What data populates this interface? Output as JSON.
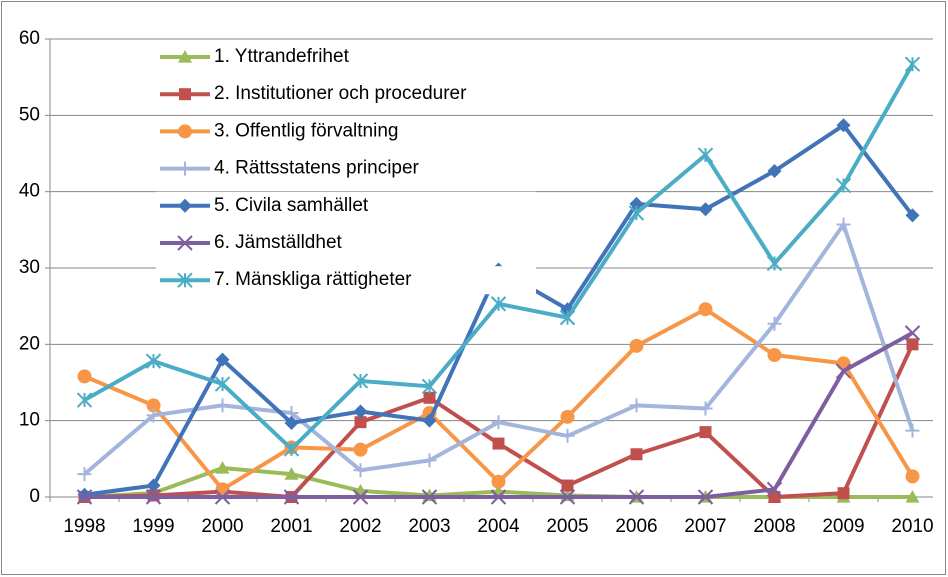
{
  "chart_data": {
    "type": "line",
    "categories": [
      "1998",
      "1999",
      "2000",
      "2001",
      "2002",
      "2003",
      "2004",
      "2005",
      "2006",
      "2007",
      "2008",
      "2009",
      "2010"
    ],
    "ylim": [
      0,
      60
    ],
    "yticks": [
      0,
      10,
      20,
      30,
      40,
      50,
      60
    ],
    "grid": true,
    "legend": "top-left",
    "series": [
      {
        "name": "1. Yttrandefrihet",
        "color": "#9bbb59",
        "marker": "triangle",
        "values": [
          0,
          0.5,
          3.8,
          3,
          0.8,
          0.2,
          0.7,
          0.2,
          0,
          0,
          0,
          0,
          0
        ]
      },
      {
        "name": "2. Institutioner och procedurer",
        "color": "#c0504d",
        "marker": "square",
        "values": [
          0,
          0.2,
          0.7,
          0,
          9.8,
          13,
          7,
          1.5,
          5.6,
          8.5,
          0,
          0.5,
          20
        ]
      },
      {
        "name": "3. Offentlig förvaltning",
        "color": "#f79646",
        "marker": "circle",
        "values": [
          15.8,
          12,
          1,
          6.5,
          6.2,
          11,
          2,
          10.5,
          19.8,
          24.6,
          18.6,
          17.5,
          2.7
        ]
      },
      {
        "name": "4. Rättsstatens principer",
        "color": "#a3b5dc",
        "marker": "plus",
        "values": [
          3,
          10.7,
          12,
          11,
          3.5,
          4.8,
          9.8,
          8,
          12,
          11.6,
          22.7,
          35.7,
          8.7
        ]
      },
      {
        "name": "5. Civila samhället",
        "color": "#4073b8",
        "marker": "diamond",
        "values": [
          0.3,
          1.5,
          18,
          9.7,
          11.2,
          10,
          29.8,
          24.6,
          38.4,
          37.7,
          42.7,
          48.7,
          36.9
        ]
      },
      {
        "name": "6. Jämställdhet",
        "color": "#7d5f9f",
        "marker": "x",
        "values": [
          0,
          0,
          0,
          0,
          0,
          0,
          0,
          0,
          0,
          0,
          1,
          16.5,
          21.5
        ]
      },
      {
        "name": "7. Mänskliga rättigheter",
        "color": "#4bacc6",
        "marker": "star",
        "values": [
          12.7,
          17.8,
          14.8,
          6.3,
          15.2,
          14.5,
          25.3,
          23.5,
          37.2,
          44.8,
          30.6,
          40.8,
          56.7
        ]
      }
    ]
  }
}
